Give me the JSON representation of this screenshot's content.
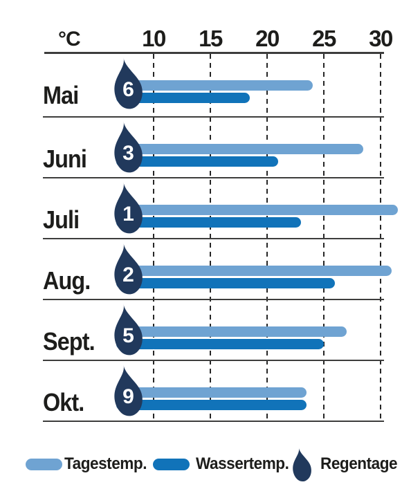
{
  "chart_data": {
    "type": "bar",
    "orientation": "horizontal",
    "title": "",
    "unit_label": "°C",
    "axis_ticks": [
      10,
      15,
      20,
      25,
      30
    ],
    "axis_range": [
      10,
      30
    ],
    "grid": "dashed-vertical",
    "categories": [
      "Mai",
      "Juni",
      "Juli",
      "Aug.",
      "Sept.",
      "Okt."
    ],
    "series": [
      {
        "name": "Tagestemp.",
        "color": "#6FA3D2",
        "values": [
          24,
          28.5,
          31.5,
          31,
          27,
          23.5
        ]
      },
      {
        "name": "Wassertemp.",
        "color": "#1173B9",
        "values": [
          18.5,
          21,
          23,
          26,
          25,
          23.5
        ]
      }
    ],
    "rain_days": {
      "name": "Regentage",
      "color": "#21395C",
      "values": [
        6,
        3,
        1,
        2,
        5,
        9
      ]
    },
    "legend_position": "bottom",
    "legend": [
      {
        "label": "Tagestemp."
      },
      {
        "label": "Wassertemp."
      },
      {
        "label": "Regentage"
      }
    ]
  },
  "colors": {
    "day_bar": "#6FA3D2",
    "water_bar": "#1173B9",
    "rain_drop": "#21395C",
    "text": "#1D1D1B",
    "line": "#3D3D3C",
    "background": "#FFFFFF"
  }
}
